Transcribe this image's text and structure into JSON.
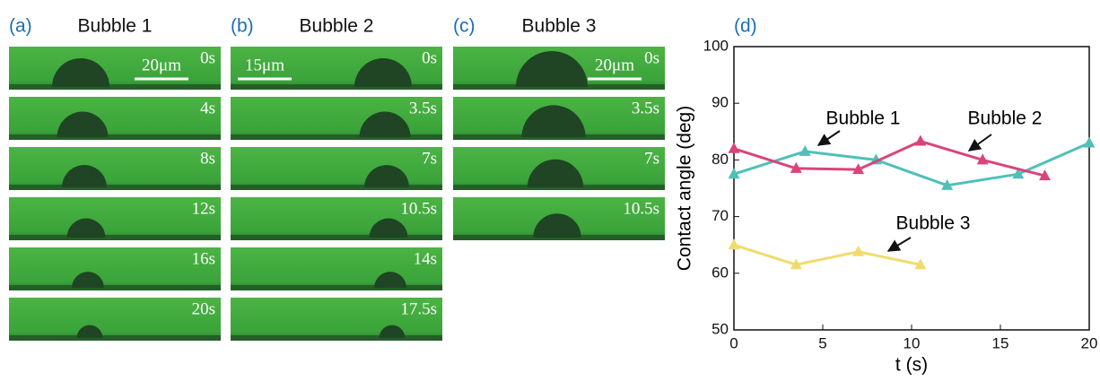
{
  "image_panels": [
    {
      "label": "(a)",
      "title": "Bubble 1",
      "scale_bar": "20μm",
      "frames": [
        "0s",
        "4s",
        "8s",
        "12s",
        "16s",
        "20s"
      ]
    },
    {
      "label": "(b)",
      "title": "Bubble 2",
      "scale_bar": "15μm",
      "frames": [
        "0s",
        "3.5s",
        "7s",
        "10.5s",
        "14s",
        "17.5s"
      ]
    },
    {
      "label": "(c)",
      "title": "Bubble 3",
      "scale_bar": "20μm",
      "frames": [
        "0s",
        "3.5s",
        "7s",
        "10.5s"
      ]
    }
  ],
  "chart_data": {
    "type": "line",
    "panel_label": "(d)",
    "x_label": "t (s)",
    "y_label": "Contact angle (deg)",
    "xlim": [
      0,
      20
    ],
    "xticks": [
      0,
      5,
      10,
      15,
      20
    ],
    "ylim": [
      50,
      100
    ],
    "yticks": [
      50,
      60,
      70,
      80,
      90,
      100
    ],
    "series": [
      {
        "name": "Bubble 1",
        "color": "#4fc0b8",
        "x": [
          0,
          4,
          8,
          12,
          16,
          20
        ],
        "values": [
          77.5,
          81.5,
          80,
          75.5,
          77.5,
          83
        ]
      },
      {
        "name": "Bubble 2",
        "color": "#d9457a",
        "x": [
          0,
          3.5,
          7,
          10.5,
          14,
          17.5
        ],
        "values": [
          82,
          78.5,
          78.3,
          83.3,
          80,
          77.2
        ]
      },
      {
        "name": "Bubble 3",
        "color": "#f0dc6e",
        "x": [
          0,
          3.5,
          7,
          10.5
        ],
        "values": [
          65,
          61.5,
          63.8,
          61.5
        ]
      }
    ]
  }
}
